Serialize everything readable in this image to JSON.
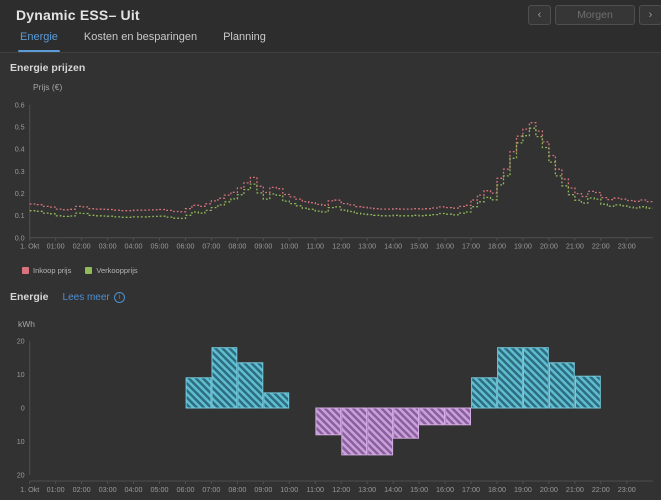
{
  "header": {
    "title": "Dynamic ESS– Uit",
    "prev_button": "‹",
    "day_button": "Morgen",
    "next_button": "›"
  },
  "tabs": [
    {
      "label": "Energie",
      "active": true
    },
    {
      "label": "Kosten en besparingen",
      "active": false
    },
    {
      "label": "Planning",
      "active": false
    }
  ],
  "price_section": {
    "title": "Energie prijzen",
    "y_axis_title": "Prijs (€)"
  },
  "energy_section": {
    "title": "Energie",
    "link_label": "Lees meer",
    "info_glyph": "i",
    "y_axis_title": "kWh"
  },
  "colors": {
    "background": "#323232",
    "header_background": "#2d2d2d",
    "accent_blue": "#5b9bd6",
    "link_blue": "#4d8fd1",
    "buy_line": "#d9737c",
    "sell_line": "#90bb58",
    "bar_positive_base": "#2e6d7e",
    "bar_positive_stripe": "#5fbdd2",
    "bar_positive_border": "#74c9dc",
    "bar_negative_base": "#8a5f9e",
    "bar_negative_stripe": "#c9a0d8",
    "bar_negative_border": "#d4abe2",
    "axis_line": "#4f4f4f",
    "tick_text": "#9a9a9a"
  },
  "chart_data": [
    {
      "type": "line",
      "title": "Energie prijzen",
      "ylabel": "Prijs (€)",
      "step": true,
      "interval_minutes": 15,
      "grid": false,
      "legend_position": "bottom-left",
      "ylim": [
        0,
        0.6
      ],
      "y_tick_values": [
        0,
        0.1,
        0.2,
        0.3,
        0.4,
        0.5,
        0.6
      ],
      "y_tick_labels": [
        "0.0",
        "0.1",
        "0.2",
        "0.3",
        "0.4",
        "0.5",
        "0.6"
      ],
      "x_tick_labels": [
        "1. Okt",
        "01:00",
        "02:00",
        "03:00",
        "04:00",
        "05:00",
        "06:00",
        "07:00",
        "08:00",
        "09:00",
        "10:00",
        "11:00",
        "12:00",
        "13:00",
        "14:00",
        "15:00",
        "16:00",
        "17:00",
        "18:00",
        "19:00",
        "20:00",
        "21:00",
        "22:00",
        "23:00"
      ],
      "series": [
        {
          "name": "Inkoop prijs",
          "color": "#d9737c",
          "values": [
            0.152,
            0.149,
            0.141,
            0.138,
            0.129,
            0.126,
            0.128,
            0.141,
            0.139,
            0.131,
            0.129,
            0.128,
            0.127,
            0.124,
            0.122,
            0.122,
            0.124,
            0.124,
            0.125,
            0.126,
            0.127,
            0.123,
            0.118,
            0.117,
            0.131,
            0.146,
            0.141,
            0.153,
            0.166,
            0.178,
            0.192,
            0.205,
            0.224,
            0.247,
            0.272,
            0.232,
            0.204,
            0.227,
            0.221,
            0.195,
            0.184,
            0.174,
            0.163,
            0.158,
            0.15,
            0.146,
            0.166,
            0.169,
            0.154,
            0.148,
            0.14,
            0.137,
            0.134,
            0.131,
            0.129,
            0.129,
            0.131,
            0.129,
            0.129,
            0.131,
            0.129,
            0.131,
            0.134,
            0.139,
            0.136,
            0.133,
            0.141,
            0.146,
            0.17,
            0.192,
            0.212,
            0.201,
            0.268,
            0.309,
            0.388,
            0.458,
            0.49,
            0.519,
            0.481,
            0.432,
            0.371,
            0.309,
            0.264,
            0.224,
            0.199,
            0.186,
            0.209,
            0.204,
            0.181,
            0.172,
            0.178,
            0.174,
            0.168,
            0.164,
            0.17,
            0.163
          ]
        },
        {
          "name": "Verkoopprijs",
          "color": "#90bb58",
          "values": [
            0.122,
            0.119,
            0.111,
            0.108,
            0.099,
            0.096,
            0.098,
            0.111,
            0.109,
            0.101,
            0.099,
            0.098,
            0.097,
            0.094,
            0.092,
            0.092,
            0.094,
            0.094,
            0.095,
            0.096,
            0.097,
            0.093,
            0.088,
            0.087,
            0.101,
            0.116,
            0.111,
            0.123,
            0.136,
            0.148,
            0.162,
            0.175,
            0.194,
            0.217,
            0.242,
            0.202,
            0.174,
            0.197,
            0.191,
            0.165,
            0.154,
            0.144,
            0.133,
            0.128,
            0.12,
            0.116,
            0.136,
            0.139,
            0.124,
            0.118,
            0.11,
            0.107,
            0.104,
            0.101,
            0.099,
            0.099,
            0.101,
            0.099,
            0.099,
            0.101,
            0.099,
            0.101,
            0.104,
            0.109,
            0.106,
            0.103,
            0.111,
            0.116,
            0.14,
            0.162,
            0.182,
            0.171,
            0.238,
            0.279,
            0.358,
            0.428,
            0.46,
            0.494,
            0.456,
            0.407,
            0.341,
            0.279,
            0.234,
            0.194,
            0.169,
            0.156,
            0.179,
            0.174,
            0.151,
            0.142,
            0.148,
            0.144,
            0.138,
            0.134,
            0.14,
            0.133
          ]
        }
      ]
    },
    {
      "type": "bar",
      "title": "Energie",
      "ylabel": "kWh",
      "bar_interval_hours": 1,
      "ylim": [
        -20,
        20
      ],
      "y_tick_values": [
        20,
        10,
        0,
        -10,
        -20
      ],
      "y_tick_labels": [
        "20",
        "10",
        "0",
        "10",
        "20"
      ],
      "x_tick_labels": [
        "1. Okt",
        "01:00",
        "02:00",
        "03:00",
        "04:00",
        "05:00",
        "06:00",
        "07:00",
        "08:00",
        "09:00",
        "10:00",
        "11:00",
        "12:00",
        "13:00",
        "14:00",
        "15:00",
        "16:00",
        "17:00",
        "18:00",
        "19:00",
        "20:00",
        "21:00",
        "22:00",
        "23:00"
      ],
      "bars": [
        {
          "hour": 6,
          "value": 9
        },
        {
          "hour": 7,
          "value": 18
        },
        {
          "hour": 8,
          "value": 13.5
        },
        {
          "hour": 9,
          "value": 4.5
        },
        {
          "hour": 11,
          "value": -8
        },
        {
          "hour": 12,
          "value": -14
        },
        {
          "hour": 13,
          "value": -14
        },
        {
          "hour": 14,
          "value": -9
        },
        {
          "hour": 15,
          "value": -5
        },
        {
          "hour": 16,
          "value": -5
        },
        {
          "hour": 17,
          "value": 9
        },
        {
          "hour": 18,
          "value": 18
        },
        {
          "hour": 19,
          "value": 18
        },
        {
          "hour": 20,
          "value": 13.5
        },
        {
          "hour": 21,
          "value": 9.5
        }
      ]
    }
  ]
}
